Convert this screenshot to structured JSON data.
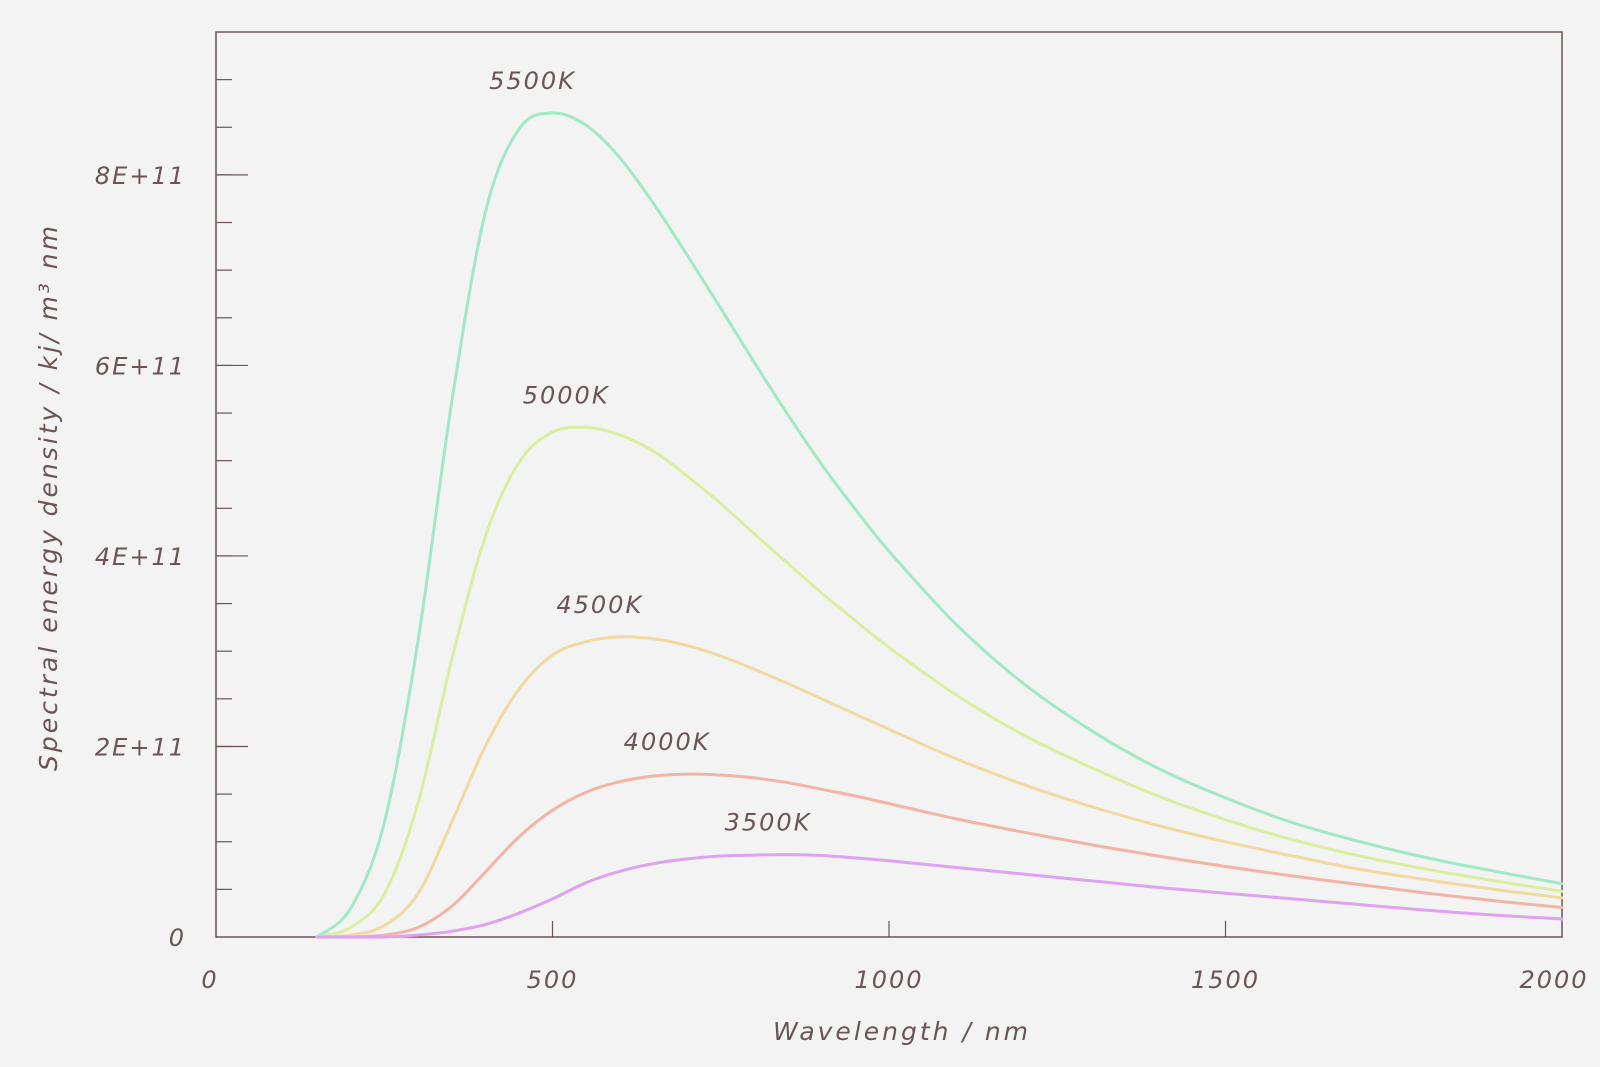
{
  "chart_data": {
    "type": "line",
    "xlabel": "Wavelength / nm",
    "ylabel": "Spectral energy density / kj/ m³ nm",
    "xlim": [
      0,
      2000
    ],
    "ylim": [
      0,
      950000000000
    ],
    "x_ticks": [
      0,
      500,
      1000,
      1500,
      2000
    ],
    "x_tick_labels": [
      "0",
      "500",
      "1000",
      "1500",
      "2000"
    ],
    "y_ticks": [
      0,
      200000000000,
      400000000000,
      600000000000,
      800000000000
    ],
    "y_tick_labels": [
      "0",
      "2E+11",
      "4E+11",
      "6E+11",
      "8E+11"
    ],
    "y_minor_step": 50000000000,
    "grid": false,
    "legend": "none",
    "x": [
      150,
      200,
      250,
      300,
      350,
      400,
      450,
      500,
      550,
      600,
      650,
      700,
      750,
      800,
      850,
      900,
      950,
      1000,
      1100,
      1200,
      1300,
      1400,
      1500,
      1600,
      1700,
      1800,
      1900,
      2000
    ],
    "series": [
      {
        "name": "5500K",
        "color": "#a0e9c4",
        "values": [
          0,
          30000000000,
          120000000000,
          310000000000,
          560000000000,
          760000000000,
          848000000000,
          865000000000,
          852000000000,
          818000000000,
          770000000000,
          716000000000,
          660000000000,
          603000000000,
          548000000000,
          496000000000,
          449000000000,
          405000000000,
          328000000000,
          266000000000,
          217000000000,
          177000000000,
          146000000000,
          120000000000,
          100000000000,
          83000000000,
          69000000000,
          56000000000
        ]
      },
      {
        "name": "5000K",
        "color": "#d9ef9f",
        "values": [
          0,
          10000000000,
          45000000000,
          140000000000,
          290000000000,
          420000000000,
          498000000000,
          530000000000,
          535000000000,
          527000000000,
          510000000000,
          484000000000,
          455000000000,
          423000000000,
          392000000000,
          361000000000,
          332000000000,
          304000000000,
          254000000000,
          212000000000,
          178000000000,
          148000000000,
          123000000000,
          102000000000,
          85000000000,
          71000000000,
          59000000000,
          48000000000
        ]
      },
      {
        "name": "4500K",
        "color": "#f1d99f",
        "values": [
          0,
          2000000000,
          12000000000,
          45000000000,
          120000000000,
          200000000000,
          260000000000,
          296000000000,
          310000000000,
          315000000000,
          313000000000,
          306000000000,
          295000000000,
          281000000000,
          266000000000,
          250000000000,
          234000000000,
          218000000000,
          187000000000,
          160000000000,
          137000000000,
          117000000000,
          100000000000,
          85000000000,
          71000000000,
          60000000000,
          50000000000,
          41000000000
        ]
      },
      {
        "name": "4000K",
        "color": "#f1b4a7",
        "values": [
          0,
          0,
          2000000000,
          10000000000,
          32000000000,
          68000000000,
          105000000000,
          133000000000,
          152000000000,
          163000000000,
          169000000000,
          171000000000,
          170000000000,
          167000000000,
          162000000000,
          155000000000,
          148000000000,
          140000000000,
          124000000000,
          110000000000,
          97000000000,
          85000000000,
          74000000000,
          64000000000,
          55000000000,
          46000000000,
          38000000000,
          31000000000
        ]
      },
      {
        "name": "3500K",
        "color": "#dea2ee",
        "values": [
          0,
          0,
          0,
          2000000000,
          6000000000,
          13000000000,
          25000000000,
          40000000000,
          57000000000,
          69000000000,
          77000000000,
          82000000000,
          85000000000,
          86000000000,
          86500000000,
          85500000000,
          83000000000,
          80000000000,
          73000000000,
          66000000000,
          59000000000,
          52000000000,
          46000000000,
          40000000000,
          34000000000,
          28000000000,
          23000000000,
          19000000000
        ]
      }
    ]
  }
}
